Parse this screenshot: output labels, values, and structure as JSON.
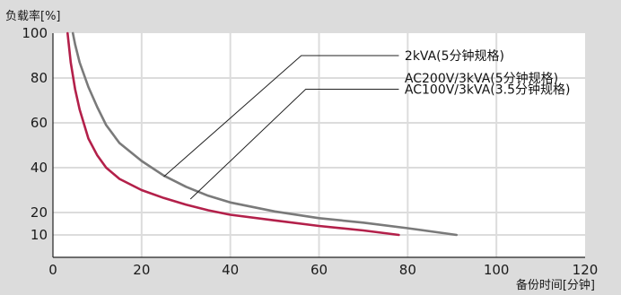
{
  "chart_data": {
    "type": "line",
    "ylabel": "负载率[%]",
    "xlabel": "备份时间[分钟]",
    "xlim": [
      0,
      120
    ],
    "ylim": [
      0,
      100
    ],
    "x_ticks": [
      0,
      20,
      40,
      60,
      80,
      100,
      120
    ],
    "y_ticks": [
      10,
      20,
      40,
      60,
      80,
      100
    ],
    "grid": true,
    "annotations": [
      "2kVA(5分钟规格)",
      "AC200V/3kVA(5分钟规格)",
      "AC100V/3kVA(3.5分钟规格)"
    ],
    "series": [
      {
        "color": "#7a7a7a",
        "points": [
          [
            4.5,
            100
          ],
          [
            5,
            95
          ],
          [
            6,
            87
          ],
          [
            8,
            76
          ],
          [
            10,
            67
          ],
          [
            12,
            59
          ],
          [
            15,
            51
          ],
          [
            20,
            43
          ],
          [
            25,
            36.5
          ],
          [
            30,
            31.5
          ],
          [
            35,
            27.5
          ],
          [
            40,
            24.5
          ],
          [
            50,
            20.5
          ],
          [
            60,
            17.5
          ],
          [
            70,
            15.5
          ],
          [
            80,
            13
          ],
          [
            91,
            10
          ]
        ]
      },
      {
        "color": "#b3204a",
        "points": [
          [
            3.3,
            100
          ],
          [
            4,
            87
          ],
          [
            5,
            75
          ],
          [
            6,
            66
          ],
          [
            8,
            53
          ],
          [
            10,
            45.5
          ],
          [
            12,
            40
          ],
          [
            15,
            35
          ],
          [
            20,
            30
          ],
          [
            25,
            26.5
          ],
          [
            30,
            23.5
          ],
          [
            35,
            21
          ],
          [
            40,
            19
          ],
          [
            50,
            16.5
          ],
          [
            60,
            14
          ],
          [
            70,
            12
          ],
          [
            78,
            10
          ]
        ]
      }
    ],
    "colors": {
      "background": "#dcdcdc",
      "plot_background": "#ffffff",
      "grid": "#dcdcdc",
      "axis": "#222222"
    }
  }
}
